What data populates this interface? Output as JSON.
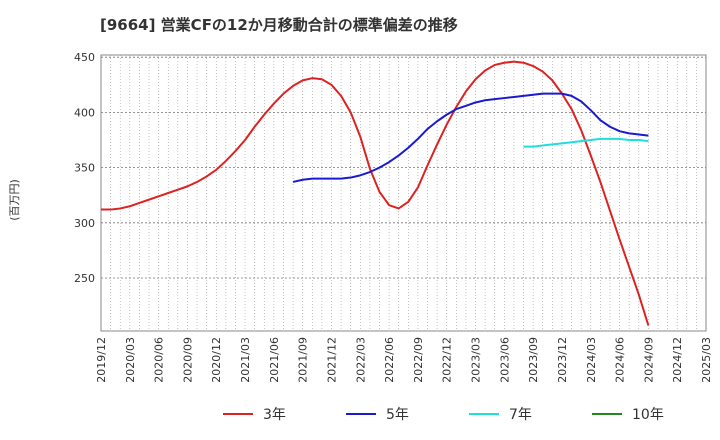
{
  "chart_data": {
    "type": "line",
    "title": "[9664]  営業CFの12か月移動合計の標準偏差の推移",
    "ylabel": "(百万円)",
    "xlabel": "",
    "ylim": [
      202,
      452
    ],
    "y_ticks": [
      250,
      300,
      350,
      400,
      450
    ],
    "x_ticks": [
      "2019/12",
      "2020/03",
      "2020/06",
      "2020/09",
      "2020/12",
      "2021/03",
      "2021/06",
      "2021/09",
      "2021/12",
      "2022/03",
      "2022/06",
      "2022/09",
      "2022/12",
      "2023/03",
      "2023/06",
      "2023/09",
      "2023/12",
      "2024/03",
      "2024/06",
      "2024/09",
      "2024/12",
      "2025/03"
    ],
    "grid": true,
    "legend_position": "bottom",
    "series": [
      {
        "name": "3年",
        "color": "#dd2222",
        "start": "2019/12",
        "values": [
          312,
          312,
          313,
          315,
          318,
          321,
          324,
          327,
          330,
          333,
          337,
          342,
          348,
          356,
          365,
          375,
          387,
          398,
          408,
          417,
          424,
          429,
          431,
          430,
          425,
          415,
          400,
          378,
          349,
          328,
          316,
          313,
          319,
          332,
          352,
          371,
          389,
          405,
          419,
          430,
          438,
          443,
          445,
          446,
          445,
          442,
          437,
          429,
          417,
          403,
          384,
          361,
          337,
          311,
          285,
          260,
          235,
          207
        ]
      },
      {
        "name": "5年",
        "color": "#1a1ad0",
        "start": "2021/08",
        "values": [
          337,
          339,
          340,
          340,
          340,
          340,
          341,
          343,
          346,
          350,
          355,
          361,
          368,
          376,
          385,
          392,
          398,
          403,
          406,
          409,
          411,
          412,
          413,
          414,
          415,
          416,
          417,
          417,
          417,
          415,
          410,
          402,
          393,
          387,
          383,
          381,
          380,
          379
        ]
      },
      {
        "name": "7年",
        "color": "#22dddd",
        "start": "2023/08",
        "values": [
          369,
          369,
          370,
          371,
          372,
          373,
          374,
          375,
          376,
          376,
          376,
          375,
          375,
          374
        ]
      },
      {
        "name": "10年",
        "color": "#228822",
        "start": "",
        "values": []
      }
    ]
  }
}
